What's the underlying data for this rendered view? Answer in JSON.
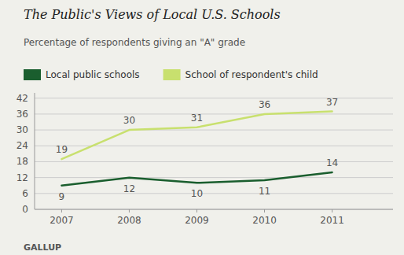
{
  "chart_data": {
    "type": "line",
    "title": "The Public's Views of Local U.S. Schools",
    "subtitle": "Percentage of respondents giving an \"A\" grade",
    "annotations": [
      "GALLUP"
    ],
    "x": [
      2007,
      2008,
      2009,
      2010,
      2011
    ],
    "series": [
      {
        "name": "Local public schools",
        "color": "#1a5e2e",
        "values": [
          9,
          12,
          10,
          11,
          14
        ]
      },
      {
        "name": "School of respondent's child",
        "color": "#c8e06e",
        "values": [
          19,
          30,
          31,
          36,
          37
        ]
      }
    ],
    "xlim": [
      2006.6,
      2011.9
    ],
    "xticks": [
      2007,
      2008,
      2009,
      2010,
      2011
    ],
    "ylim": [
      0,
      44
    ],
    "yticks": [
      0,
      6,
      12,
      18,
      24,
      30,
      36,
      42
    ],
    "grid": true,
    "legend": "top",
    "data_labels": true
  }
}
